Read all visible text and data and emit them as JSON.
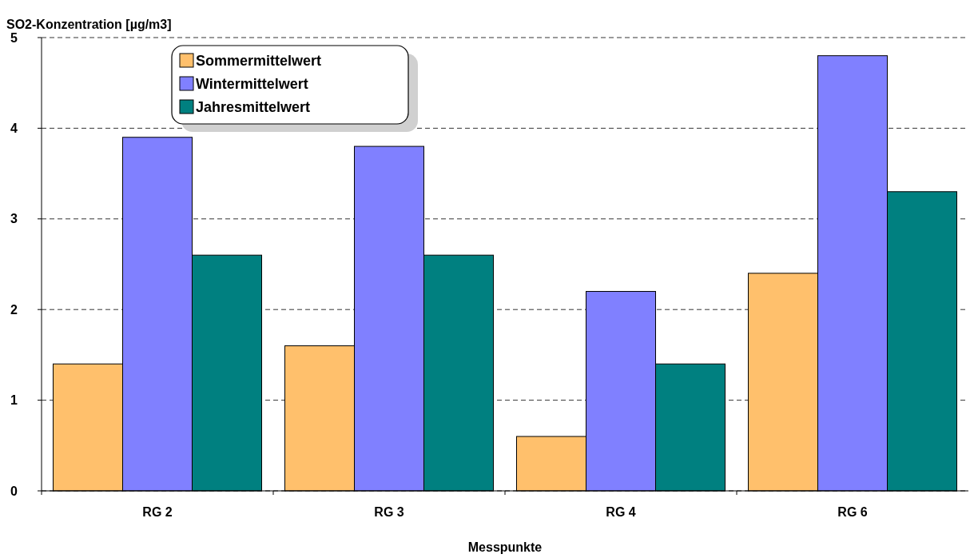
{
  "chart_data": {
    "type": "bar",
    "ylabel": "SO2-Konzentration [µg/m3]",
    "xlabel": "Messpunkte",
    "categories": [
      "RG 2",
      "RG 3",
      "RG 4",
      "RG 6"
    ],
    "series": [
      {
        "name": "Sommermittelwert",
        "color": "#ffc06c",
        "values": [
          1.4,
          1.6,
          0.6,
          2.4
        ]
      },
      {
        "name": "Wintermittelwert",
        "color": "#8080ff",
        "values": [
          3.9,
          3.8,
          2.2,
          4.8
        ]
      },
      {
        "name": "Jahresmittelwert",
        "color": "#008080",
        "values": [
          2.6,
          2.6,
          1.4,
          3.3
        ]
      }
    ],
    "ylim": [
      0,
      5
    ],
    "yticks": [
      0,
      1,
      2,
      3,
      4,
      5
    ],
    "grid": "y",
    "legend": "top left"
  }
}
